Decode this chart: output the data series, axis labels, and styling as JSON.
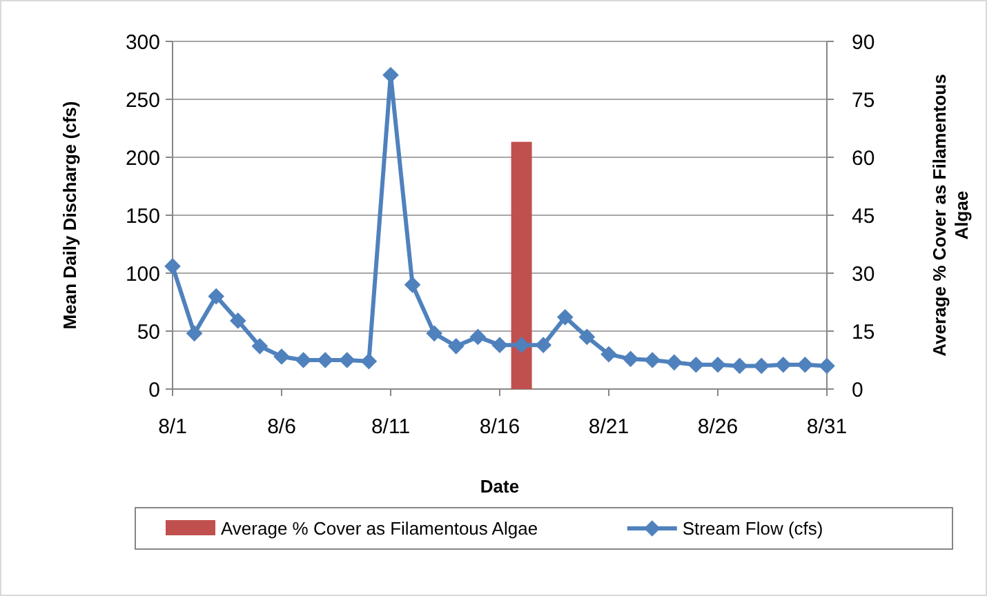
{
  "chart_data": {
    "type": "line",
    "xlabel": "Date",
    "ylabel": "Mean Daily Discharge (cfs)",
    "y2label": "Average % Cover as Filamentous Algae",
    "categories": [
      "8/1",
      null,
      null,
      null,
      null,
      "8/6",
      null,
      null,
      null,
      null,
      "8/11",
      null,
      null,
      null,
      null,
      "8/16",
      null,
      null,
      null,
      null,
      "8/21",
      null,
      null,
      null,
      null,
      "8/26",
      null,
      null,
      null,
      null,
      "8/31"
    ],
    "series": [
      {
        "name": "Average % Cover as Filamentous Algae",
        "type": "bar",
        "axis": "y2",
        "color": "#c0504d",
        "values": [
          null,
          null,
          null,
          null,
          null,
          null,
          null,
          null,
          null,
          null,
          null,
          null,
          null,
          null,
          null,
          null,
          64,
          null,
          null,
          null,
          null,
          null,
          null,
          null,
          null,
          null,
          null,
          null,
          null,
          null,
          null
        ]
      },
      {
        "name": "Stream Flow (cfs)",
        "color": "#4f81bd",
        "marker": "diamond",
        "values": [
          106,
          48,
          80,
          59,
          37,
          28,
          25,
          25,
          25,
          24,
          271,
          90,
          48,
          37,
          45,
          38,
          38,
          38,
          62,
          45,
          30,
          26,
          25,
          23,
          21,
          21,
          20,
          20,
          21,
          21,
          20
        ]
      }
    ],
    "ylim": [
      0,
      300
    ],
    "yticks": [
      0,
      50,
      100,
      150,
      200,
      250,
      300
    ],
    "y2lim": [
      0,
      90
    ],
    "y2ticks": [
      0,
      15,
      30,
      45,
      60,
      75,
      90
    ],
    "grid": "y",
    "legend": "bottom"
  }
}
